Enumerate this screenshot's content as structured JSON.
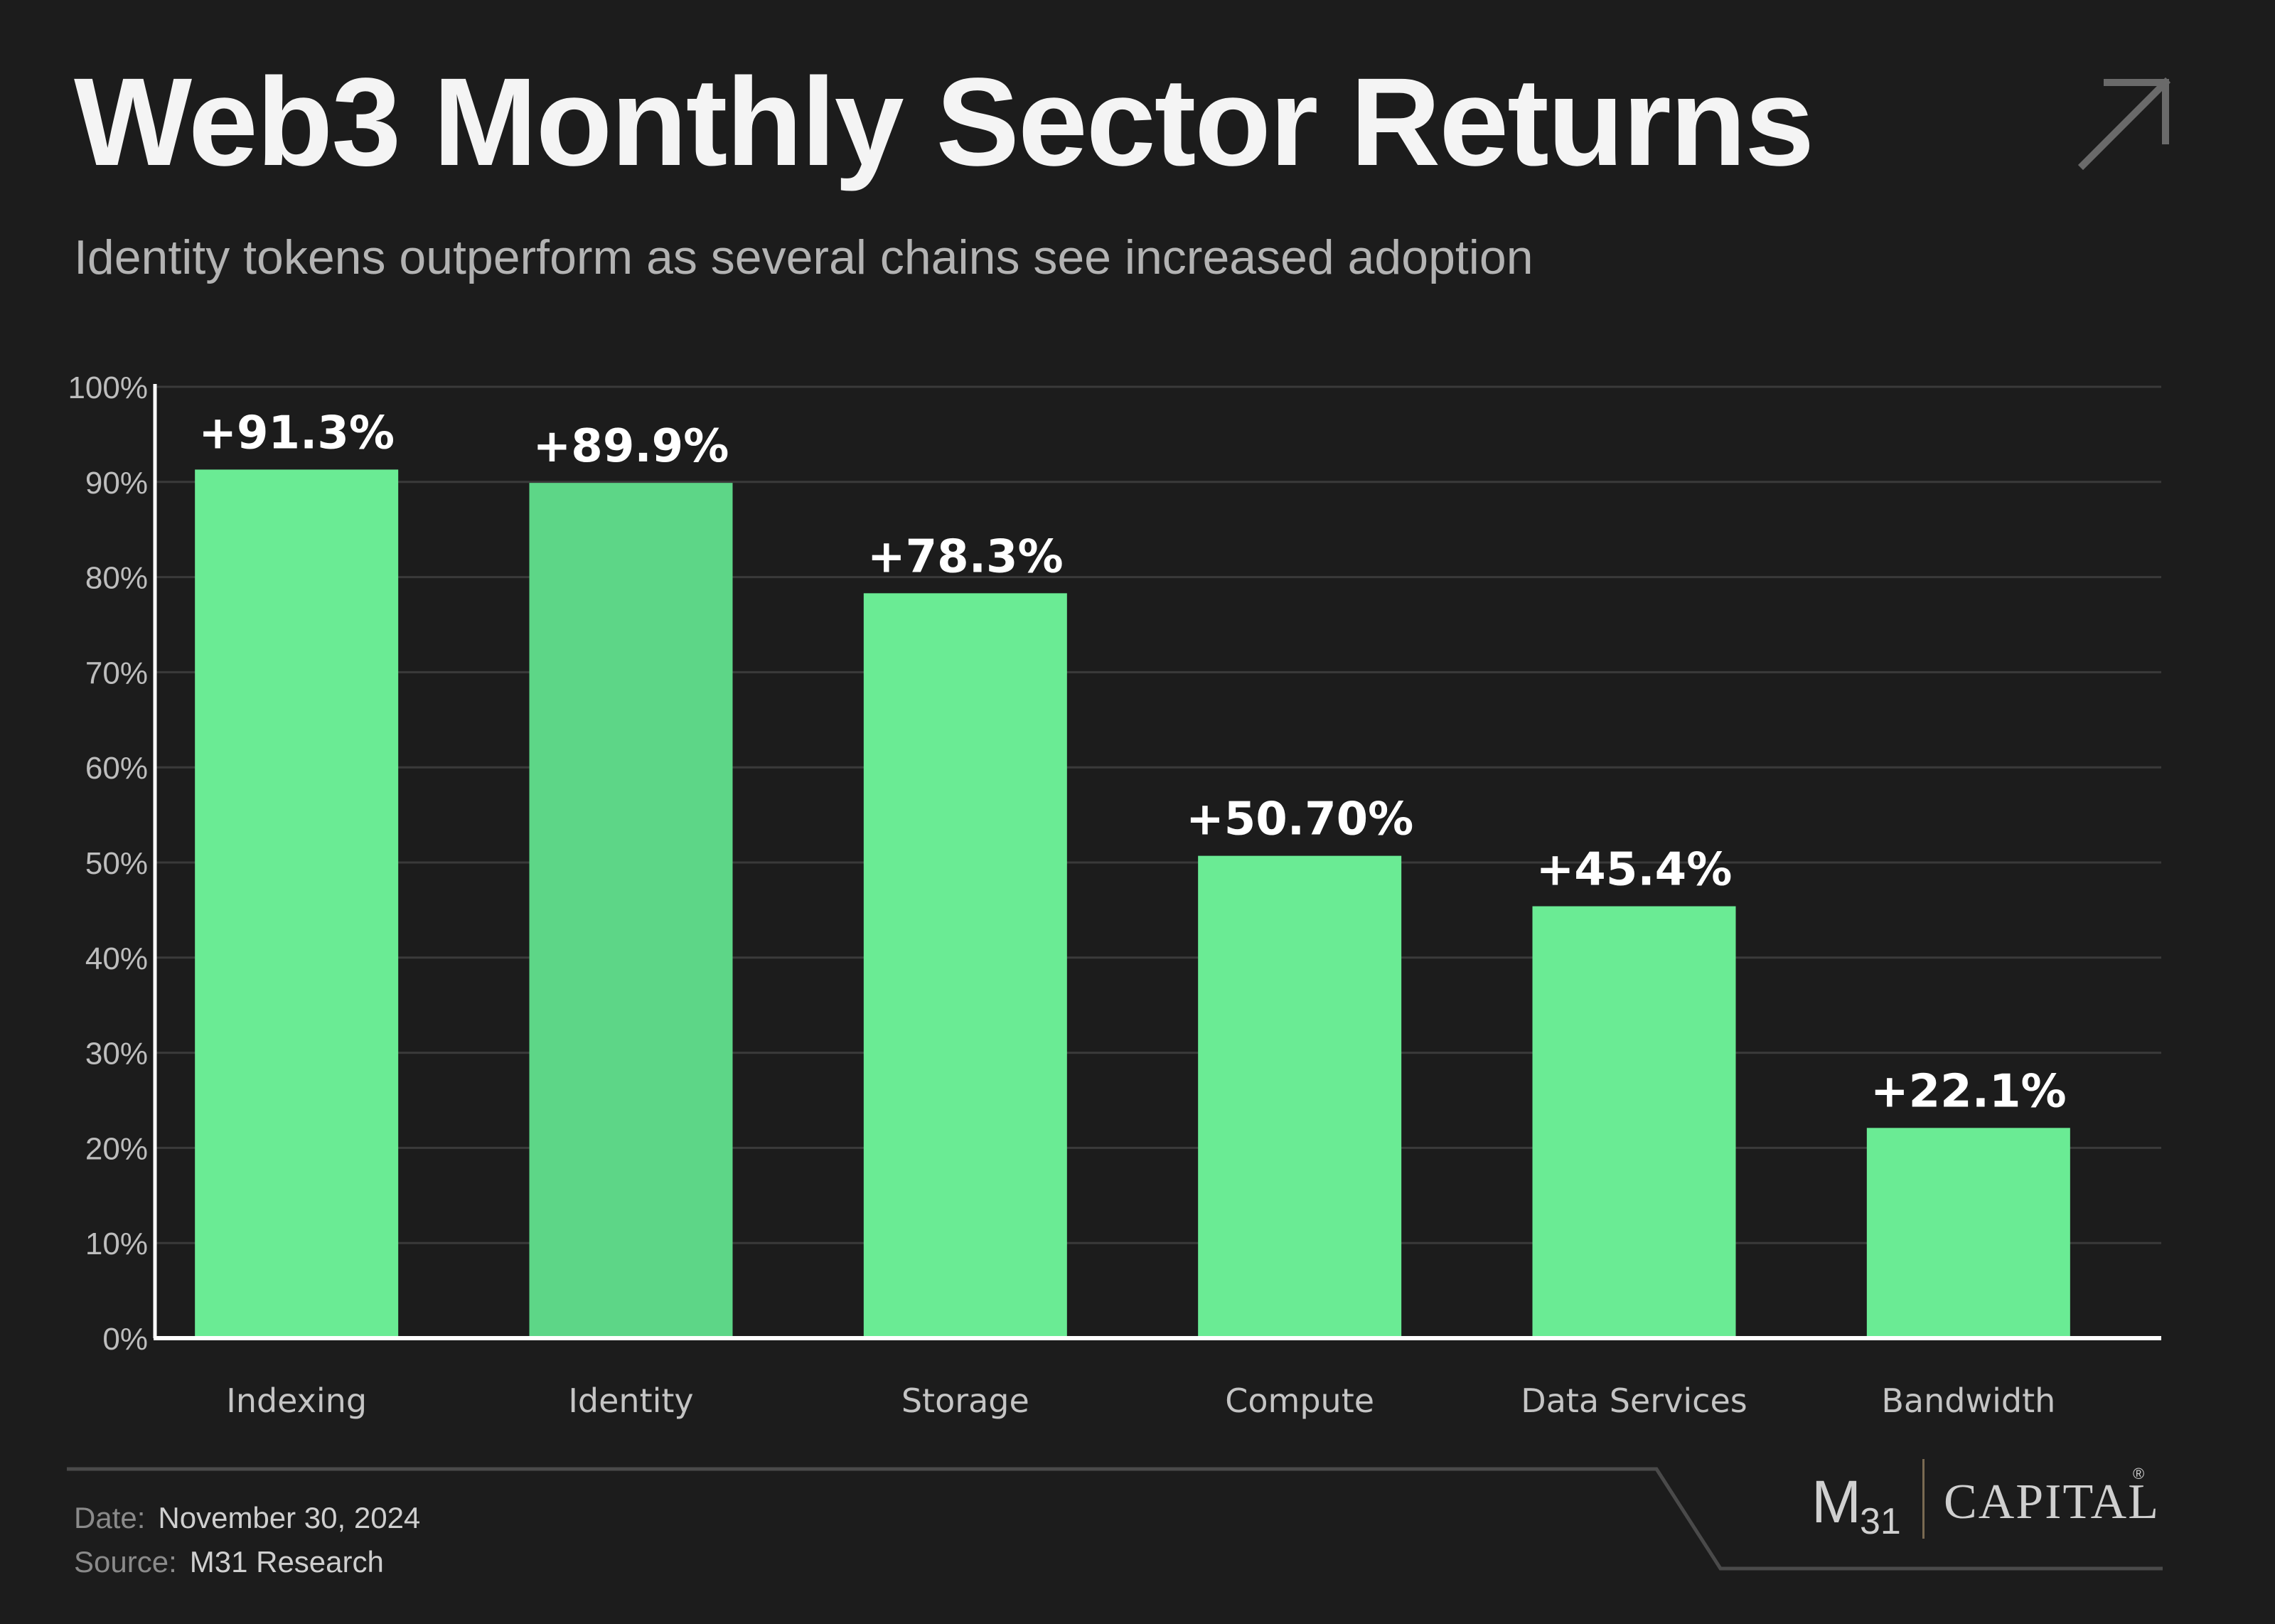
{
  "header": {
    "title": "Web3 Monthly Sector Returns",
    "subtitle": "Identity tokens outperform as several chains see increased adoption"
  },
  "icons": {
    "corner": "arrow-up-right-icon"
  },
  "chart_data": {
    "type": "bar",
    "title": "",
    "xlabel": "",
    "ylabel": "",
    "categories": [
      "Indexing",
      "Identity",
      "Storage",
      "Compute",
      "Data Services",
      "Bandwidth"
    ],
    "values": [
      91.3,
      89.9,
      78.3,
      50.7,
      45.4,
      22.1
    ],
    "data_labels": [
      "+91.3%",
      "+89.9%",
      "+78.3%",
      "+50.70%",
      "+45.4%",
      "+22.1%"
    ],
    "ylim": [
      0,
      100
    ],
    "yticks": [
      0,
      10,
      20,
      30,
      40,
      50,
      60,
      70,
      80,
      90,
      100
    ],
    "ytick_labels": [
      "0%",
      "10%",
      "20%",
      "30%",
      "40%",
      "50%",
      "60%",
      "70%",
      "80%",
      "90%",
      "100%"
    ],
    "grid": true,
    "colors": {
      "bar": "#6aeb94",
      "highlight_bar": "#5dd687",
      "grid": "#3a3a3a",
      "axis": "#ffffff"
    },
    "highlight_index": 1
  },
  "footer": {
    "date_label": "Date:",
    "date_value": "November 30, 2024",
    "source_label": "Source:",
    "source_value": "M31 Research"
  },
  "logo": {
    "mark": "M",
    "sub": "31",
    "name": "CAPITAL",
    "registered": "®"
  }
}
